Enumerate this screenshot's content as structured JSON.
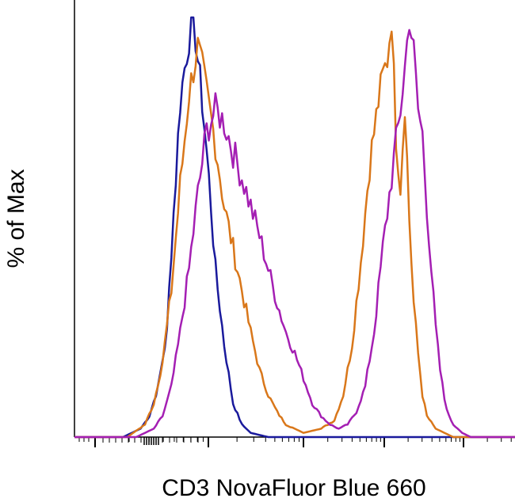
{
  "chart_data": {
    "type": "line",
    "title": "",
    "xlabel": "CD3 NovaFluor Blue 660",
    "ylabel": "% of Max",
    "x_scale": "biexponential (log decades, no tick labels shown)",
    "xlim": [
      0,
      100
    ],
    "ylim": [
      0,
      100
    ],
    "x_tick_labels_shown": false,
    "y_ticks_shown": false,
    "grid": false,
    "legend": "none",
    "series": [
      {
        "color": "#1a1a9c",
        "x": [
          0,
          11,
          15,
          17,
          19,
          21,
          22,
          23,
          24,
          25,
          26,
          27,
          28,
          29,
          30,
          31,
          32,
          34,
          36,
          38,
          40,
          44,
          50,
          100
        ],
        "y": [
          0,
          0,
          2,
          5,
          12,
          25,
          45,
          62,
          80,
          88,
          95,
          100,
          90,
          80,
          68,
          55,
          40,
          22,
          8,
          3,
          1,
          0,
          0,
          0
        ]
      },
      {
        "color": "#d9771a",
        "x": [
          0,
          12,
          16,
          18,
          20,
          22,
          24,
          26,
          28,
          29,
          30,
          32,
          34,
          36,
          38,
          40,
          42,
          44,
          46,
          48,
          52,
          56,
          59,
          61,
          63,
          65,
          67,
          69,
          70,
          71,
          72,
          73,
          74,
          75,
          76,
          77,
          78,
          79,
          80,
          82,
          84,
          86,
          100
        ],
        "y": [
          0,
          0,
          3,
          8,
          18,
          35,
          60,
          82,
          93,
          88,
          82,
          70,
          55,
          45,
          35,
          25,
          16,
          10,
          6,
          3,
          1,
          2,
          4,
          10,
          22,
          42,
          65,
          80,
          86,
          90,
          100,
          72,
          60,
          80,
          52,
          32,
          20,
          10,
          5,
          2,
          1,
          0,
          0
        ]
      },
      {
        "color": "#a41fb3",
        "x": [
          0,
          14,
          18,
          20,
          22,
          24,
          26,
          28,
          30,
          32,
          34,
          36,
          38,
          40,
          42,
          44,
          46,
          48,
          50,
          52,
          54,
          56,
          58,
          60,
          62,
          64,
          66,
          68,
          70,
          72,
          74,
          75,
          76,
          77,
          78,
          79,
          80,
          81,
          82,
          83,
          84,
          85,
          86,
          88,
          90,
          92,
          94,
          100
        ],
        "y": [
          0,
          0,
          2,
          5,
          12,
          25,
          40,
          58,
          73,
          78,
          75,
          68,
          62,
          55,
          48,
          40,
          32,
          25,
          20,
          14,
          8,
          5,
          3,
          2,
          3,
          6,
          12,
          25,
          45,
          62,
          78,
          88,
          100,
          92,
          78,
          72,
          55,
          40,
          26,
          16,
          9,
          5,
          3,
          1,
          0,
          0,
          0,
          0
        ]
      }
    ]
  }
}
